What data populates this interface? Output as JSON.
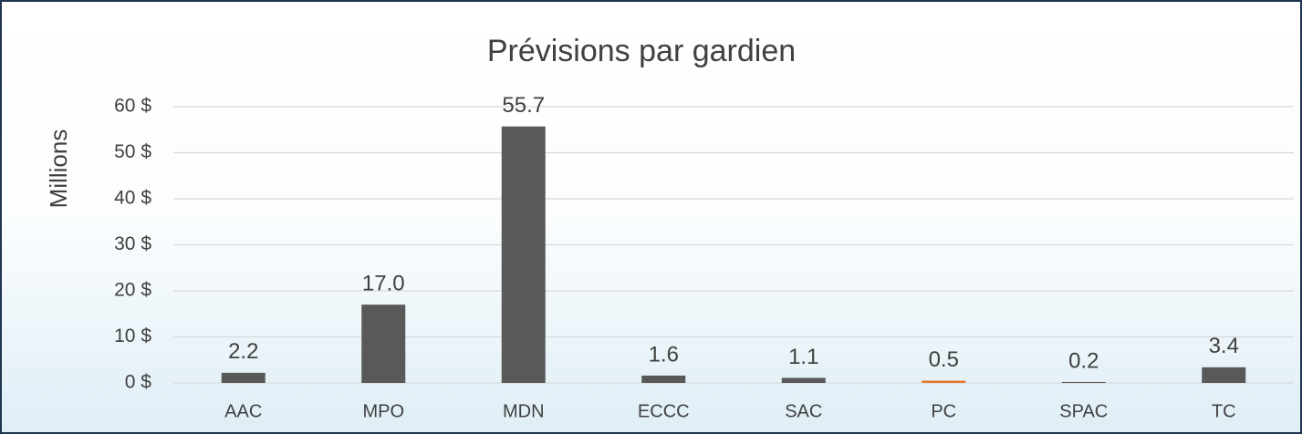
{
  "chart_data": {
    "type": "bar",
    "title": "Prévisions par gardien",
    "y_label": "Millions",
    "categories": [
      "AAC",
      "MPO",
      "MDN",
      "ECCC",
      "SAC",
      "PC",
      "SPAC",
      "TC"
    ],
    "values": [
      2.2,
      17.0,
      55.7,
      1.6,
      1.1,
      0.5,
      0.2,
      3.4
    ],
    "value_labels": [
      "2.2",
      "17.0",
      "55.7",
      "1.6",
      "1.1",
      "0.5",
      "0.2",
      "3.4"
    ],
    "colors": [
      "#595959",
      "#595959",
      "#595959",
      "#595959",
      "#595959",
      "#e07a2e",
      "#595959",
      "#595959"
    ],
    "ylim": [
      0,
      60
    ],
    "yticks": [
      {
        "value": 0,
        "label": "0 $"
      },
      {
        "value": 10,
        "label": "10 $"
      },
      {
        "value": 20,
        "label": "20 $"
      },
      {
        "value": 30,
        "label": "30 $"
      },
      {
        "value": 40,
        "label": "40 $"
      },
      {
        "value": 50,
        "label": "50 $"
      },
      {
        "value": 60,
        "label": "60 $"
      }
    ],
    "grid": true
  }
}
